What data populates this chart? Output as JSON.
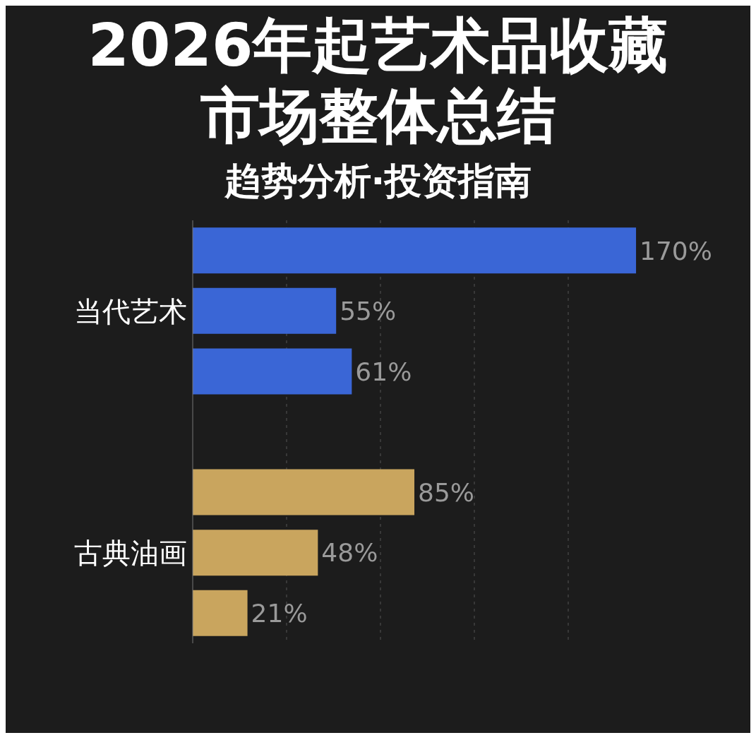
{
  "chart_data": {
    "type": "bar",
    "orientation": "horizontal",
    "title": "2026年起艺术品收藏市场整体总结",
    "subtitle": "趋势分析·投资指南",
    "categories": [
      null,
      "当代艺术",
      null,
      null,
      null,
      "古典油画",
      null
    ],
    "values": [
      170,
      55,
      61,
      null,
      85,
      48,
      21
    ],
    "colors": [
      "#3a66d6",
      "#3a66d6",
      "#3a66d6",
      "#1c1c1c",
      "#c9a55e",
      "#c9a55e",
      "#c9a55e"
    ],
    "value_labels": [
      "170%",
      "55%",
      "61%",
      null,
      "85%",
      "48%",
      "21%"
    ],
    "grid": "x",
    "tick_labels": "y"
  }
}
